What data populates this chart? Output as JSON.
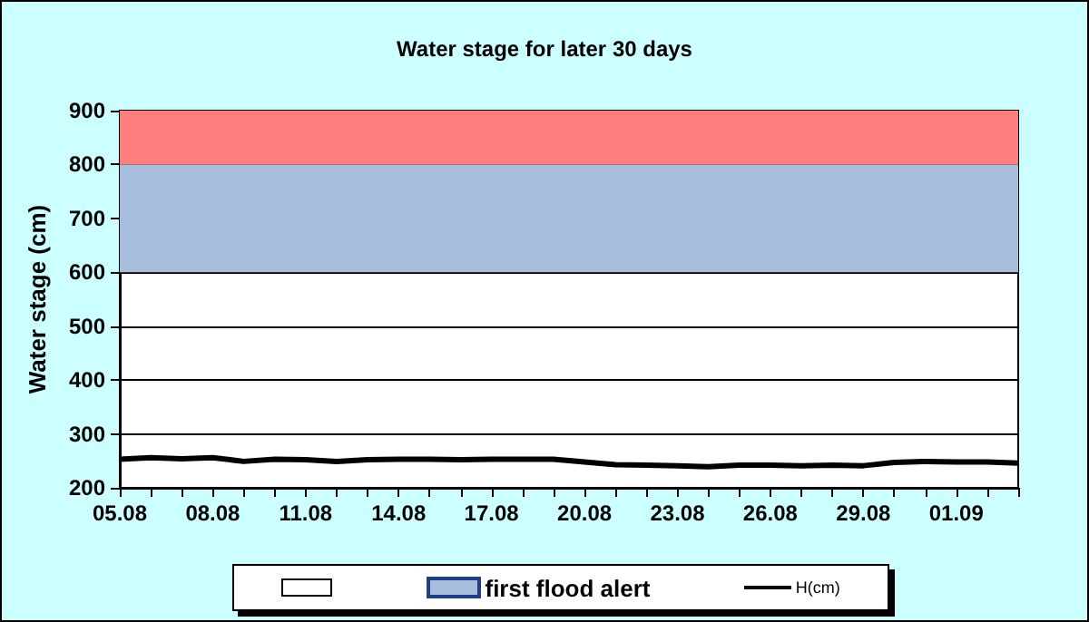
{
  "chart_data": {
    "type": "line",
    "title": "Water stage for later 30 days",
    "ylabel": "Water stage (cm)",
    "categories": [
      "05.08",
      null,
      null,
      "08.08",
      null,
      null,
      "11.08",
      null,
      null,
      "14.08",
      null,
      null,
      "17.08",
      null,
      null,
      "20.08",
      null,
      null,
      "23.08",
      null,
      null,
      "26.08",
      null,
      null,
      "29.08",
      null,
      null,
      "01.09",
      null,
      null
    ],
    "series": [
      {
        "name": "H(cm)",
        "color": "#000000",
        "values": [
          253,
          256,
          254,
          256,
          249,
          253,
          252,
          249,
          252,
          253,
          253,
          252,
          253,
          253,
          253,
          248,
          243,
          242,
          241,
          239,
          242,
          242,
          241,
          242,
          241,
          247,
          249,
          248,
          248,
          246
        ]
      }
    ],
    "ylim": [
      200,
      900
    ],
    "yticks": [
      200,
      300,
      400,
      500,
      600,
      700,
      800,
      900
    ],
    "bands": [
      {
        "axis": "y",
        "from": 600,
        "to": 800,
        "label": "first flood alert",
        "color": "#a6bddb"
      },
      {
        "axis": "y",
        "from": 800,
        "to": 900,
        "label": null,
        "color": "#ff7f7f"
      }
    ],
    "grid": "y",
    "legend": "bottom",
    "marker": "none",
    "line_style": "solid"
  }
}
